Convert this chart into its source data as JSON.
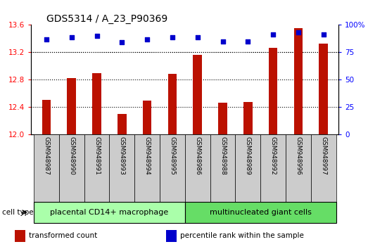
{
  "title": "GDS5314 / A_23_P90369",
  "samples": [
    "GSM948987",
    "GSM948990",
    "GSM948991",
    "GSM948993",
    "GSM948994",
    "GSM948995",
    "GSM948986",
    "GSM948988",
    "GSM948989",
    "GSM948992",
    "GSM948996",
    "GSM948997"
  ],
  "transformed_count": [
    12.51,
    12.82,
    12.9,
    12.3,
    12.49,
    12.89,
    13.16,
    12.46,
    12.47,
    13.26,
    13.55,
    13.33
  ],
  "percentile_rank": [
    87,
    89,
    90,
    84,
    87,
    89,
    89,
    85,
    85,
    91,
    93,
    91
  ],
  "groups": [
    {
      "label": "placental CD14+ macrophage",
      "start": 0,
      "end": 6,
      "color": "#aaffaa"
    },
    {
      "label": "multinucleated giant cells",
      "start": 6,
      "end": 12,
      "color": "#66dd66"
    }
  ],
  "cell_type_label": "cell type",
  "ylim_left": [
    12.0,
    13.6
  ],
  "ylim_right": [
    0,
    100
  ],
  "yticks_left": [
    12.0,
    12.4,
    12.8,
    13.2,
    13.6
  ],
  "yticks_right": [
    0,
    25,
    50,
    75,
    100
  ],
  "bar_color": "#bb1100",
  "dot_color": "#0000cc",
  "legend_items": [
    {
      "label": "transformed count",
      "color": "#bb1100"
    },
    {
      "label": "percentile rank within the sample",
      "color": "#0000cc"
    }
  ],
  "title_fontsize": 10,
  "tick_fontsize": 7.5,
  "label_fontsize": 7.5,
  "sample_fontsize": 6.5,
  "group_fontsize": 8,
  "legend_fontsize": 7.5
}
